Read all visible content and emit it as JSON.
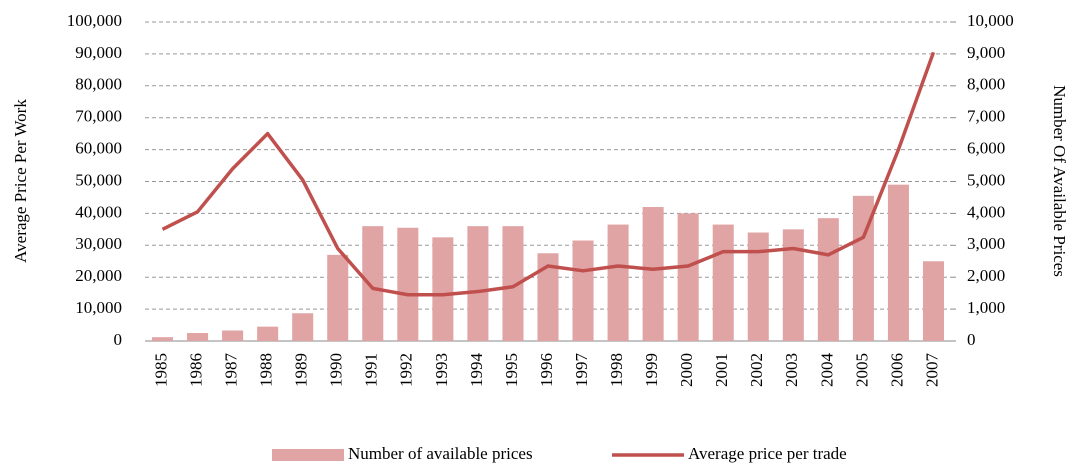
{
  "chart_data": {
    "type": "bar-line",
    "y_label": "Average Price Per Work",
    "y2_label": "Number Of Available Prices",
    "categories": [
      "1985",
      "1986",
      "1987",
      "1988",
      "1989",
      "1990",
      "1991",
      "1992",
      "1993",
      "1994",
      "1995",
      "1996",
      "1997",
      "1998",
      "1999",
      "2000",
      "2001",
      "2002",
      "2003",
      "2004",
      "2005",
      "2006",
      "2007"
    ],
    "series": [
      {
        "name": "Number of available prices",
        "color": "#e0a4a4",
        "kind": "bar",
        "axis": "y2",
        "values": [
          120,
          250,
          330,
          450,
          870,
          2700,
          3600,
          3550,
          3250,
          3600,
          3600,
          2750,
          3150,
          3650,
          4200,
          4000,
          3650,
          3400,
          3500,
          3850,
          4550,
          4900,
          2500
        ]
      },
      {
        "name": "Average price per trade",
        "color": "#c0504d",
        "kind": "line",
        "values": [
          35000,
          40500,
          54000,
          65000,
          50500,
          29000,
          16500,
          14500,
          14500,
          15500,
          17000,
          23500,
          22000,
          23500,
          22500,
          23500,
          28000,
          28000,
          29000,
          27000,
          32500,
          60000,
          90500
        ]
      }
    ],
    "ylim": [
      0,
      100000
    ],
    "yticks": [
      0,
      {
        "value": 10000,
        "label": "10,000"
      },
      {
        "value": 20000,
        "label": "20,000"
      },
      {
        "value": 30000,
        "label": "30,000"
      },
      {
        "value": 40000,
        "label": "40,000"
      },
      {
        "value": 50000,
        "label": "50,000"
      },
      {
        "value": 60000,
        "label": "60,000"
      },
      {
        "value": 70000,
        "label": "70,000"
      },
      {
        "value": 80000,
        "label": "80,000"
      },
      {
        "value": 90000,
        "label": "90,000"
      },
      {
        "value": 100000,
        "label": "100,000"
      }
    ],
    "y2lim": [
      0,
      10000
    ],
    "y2ticks": [
      0,
      {
        "value": 1000,
        "label": "1,000"
      },
      {
        "value": 2000,
        "label": "2,000"
      },
      {
        "value": 3000,
        "label": "3,000"
      },
      {
        "value": 4000,
        "label": "4,000"
      },
      {
        "value": 5000,
        "label": "5,000"
      },
      {
        "value": 6000,
        "label": "6,000"
      },
      {
        "value": 7000,
        "label": "7,000"
      },
      {
        "value": 8000,
        "label": "8,000"
      },
      {
        "value": 9000,
        "label": "9,000"
      },
      {
        "value": 10000,
        "label": "10,000"
      }
    ],
    "grid": true,
    "legend": "bottom"
  }
}
